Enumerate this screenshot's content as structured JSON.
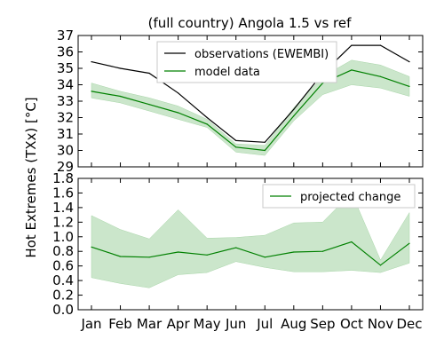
{
  "chart_data": [
    {
      "type": "line",
      "title": "(full country) Angola 1.5 vs ref",
      "categories": [
        "Jan",
        "Feb",
        "Mar",
        "Apr",
        "May",
        "Jun",
        "Jul",
        "Aug",
        "Sep",
        "Oct",
        "Nov",
        "Dec"
      ],
      "ylim": [
        29,
        37
      ],
      "yticks": [
        "29",
        "30",
        "31",
        "32",
        "33",
        "34",
        "35",
        "36",
        "37"
      ],
      "series": [
        {
          "name": "observations (EWEMBI)",
          "color": "#000000",
          "values": [
            35.4,
            35.0,
            34.7,
            33.5,
            32.0,
            30.6,
            30.5,
            32.5,
            34.7,
            36.4,
            36.4,
            35.4
          ]
        },
        {
          "name": "model data",
          "color": "#008000",
          "values": [
            33.6,
            33.3,
            32.8,
            32.3,
            31.6,
            30.2,
            30.0,
            32.1,
            34.1,
            34.9,
            34.5,
            33.9
          ],
          "band_low": [
            33.2,
            32.9,
            32.4,
            31.9,
            31.4,
            29.9,
            29.7,
            31.8,
            33.4,
            34.0,
            33.8,
            33.3
          ],
          "band_high": [
            34.1,
            33.6,
            33.2,
            32.7,
            31.9,
            30.4,
            30.3,
            32.6,
            34.5,
            35.5,
            35.2,
            34.5
          ],
          "band_color": "#a8d5a8"
        }
      ],
      "legend": "top-center",
      "grid": false
    },
    {
      "type": "line",
      "title": "",
      "categories": [
        "Jan",
        "Feb",
        "Mar",
        "Apr",
        "May",
        "Jun",
        "Jul",
        "Aug",
        "Sep",
        "Oct",
        "Nov",
        "Dec"
      ],
      "ylim": [
        0.0,
        1.8
      ],
      "yticks": [
        "0.0",
        "0.2",
        "0.4",
        "0.6",
        "0.8",
        "1.0",
        "1.2",
        "1.4",
        "1.6",
        "1.8"
      ],
      "series": [
        {
          "name": "projected change",
          "color": "#008000",
          "values": [
            0.86,
            0.73,
            0.72,
            0.79,
            0.75,
            0.85,
            0.72,
            0.79,
            0.8,
            0.93,
            0.61,
            0.91
          ],
          "band_low": [
            0.44,
            0.36,
            0.3,
            0.48,
            0.51,
            0.66,
            0.58,
            0.52,
            0.52,
            0.54,
            0.51,
            0.64
          ],
          "band_high": [
            1.29,
            1.1,
            0.97,
            1.37,
            0.98,
            0.99,
            1.02,
            1.19,
            1.2,
            1.6,
            0.68,
            1.33
          ],
          "band_color": "#a8d5a8"
        }
      ],
      "legend": "top-right",
      "grid": false
    }
  ],
  "shared": {
    "ylabel": "Hot Extremes (TXx) [$^\\circ C$]",
    "ylabel_rendered": "Hot Extremes (TXx) [°C]"
  }
}
